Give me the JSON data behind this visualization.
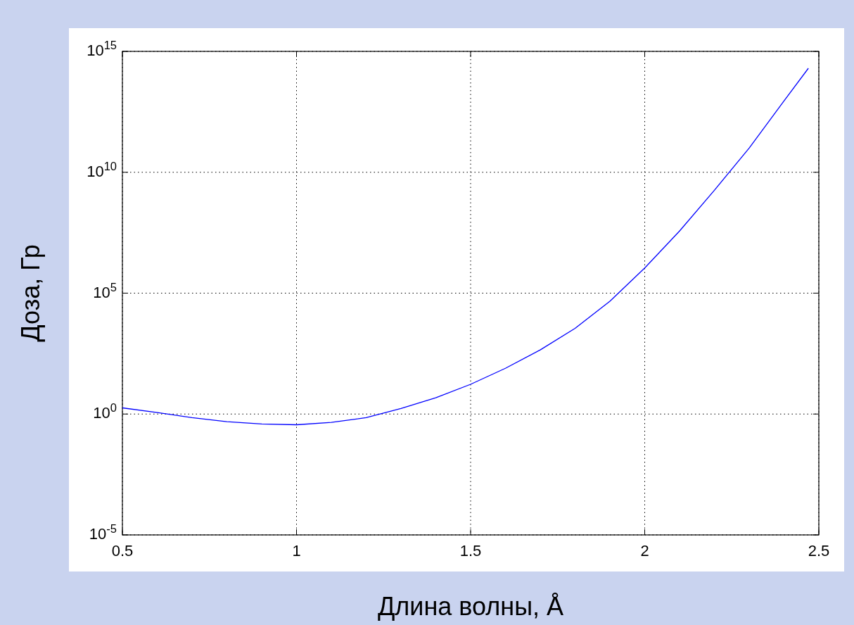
{
  "chart_data": {
    "type": "line",
    "xlabel": "Длина волны, Å",
    "ylabel": "Доза, Гр",
    "log": "y",
    "grid": true,
    "xlim": [
      0.5,
      2.5
    ],
    "xticks": [
      0.5,
      1,
      1.5,
      2,
      2.5
    ],
    "ylim": [
      1e-05,
      1000000000000000.0
    ],
    "yticks": [
      {
        "value": 1e-05,
        "label": "10$^{-5}$"
      },
      {
        "value": 1,
        "label": "10$^{0}$"
      },
      {
        "value": 100000.0,
        "label": "10$^{5}$"
      },
      {
        "value": 10000000000.0,
        "label": "10$^{10}$"
      },
      {
        "value": 1000000000000000.0,
        "label": "10$^{15}$"
      }
    ],
    "series": [
      {
        "color": "#0000ff",
        "x": [
          0.5,
          0.6,
          0.7,
          0.8,
          0.9,
          1.0,
          1.1,
          1.2,
          1.3,
          1.4,
          1.5,
          1.6,
          1.7,
          1.8,
          1.9,
          2.0,
          2.1,
          2.2,
          2.3,
          2.4,
          2.47
        ],
        "values": [
          1.8,
          1.15,
          0.71,
          0.48,
          0.39,
          0.36,
          0.45,
          0.71,
          1.7,
          4.7,
          17,
          78,
          450,
          3500,
          46000,
          1100000,
          37000000,
          1800000000,
          100000000000,
          8900000000000,
          200000000000000
        ]
      }
    ]
  }
}
